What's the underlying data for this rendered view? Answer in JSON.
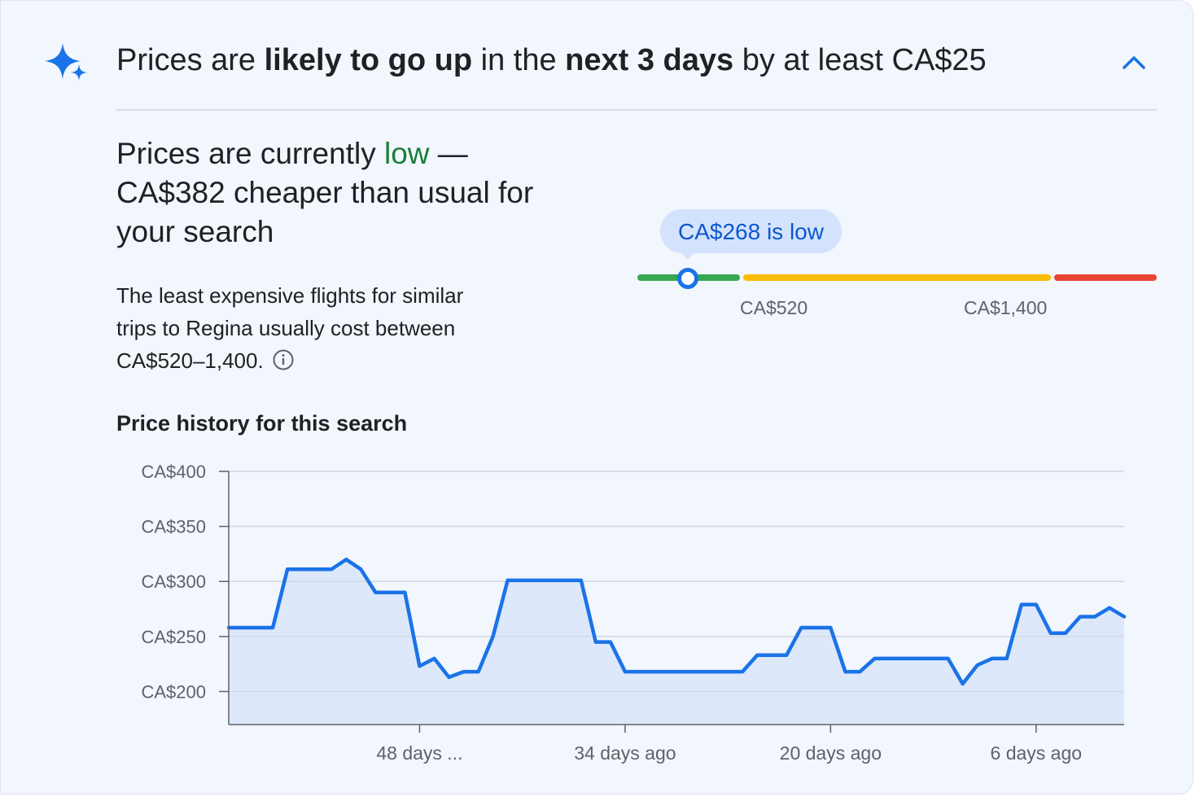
{
  "header": {
    "part1": "Prices are ",
    "bold1": "likely to go up",
    "part2": " in the ",
    "bold2": "next 3 days",
    "part3": " by at least CA$25"
  },
  "status": {
    "part1": "Prices are currently ",
    "level": "low",
    "part2": " — CA$382 cheaper than usual for your search"
  },
  "description": "The least expensive flights for similar trips to Regina usually cost between CA$520–1,400.",
  "gauge": {
    "bubble_label": "CA$268 is low",
    "label_low": "CA$520",
    "label_high": "CA$1,400",
    "colors": {
      "low": "#34a853",
      "typical": "#fbbc04",
      "high": "#ea4335"
    }
  },
  "history_title": "Price history for this search",
  "chart_data": {
    "type": "area",
    "title": "Price history for this search",
    "xlabel": "",
    "ylabel": "",
    "y_ticks": [
      "CA$200",
      "CA$250",
      "CA$300",
      "CA$350",
      "CA$400"
    ],
    "ylim": [
      170,
      400
    ],
    "x_ticks": [
      {
        "label": "48 days ...",
        "days_ago": 48
      },
      {
        "label": "34 days ago",
        "days_ago": 34
      },
      {
        "label": "20 days ago",
        "days_ago": 20
      },
      {
        "label": "6 days ago",
        "days_ago": 6
      }
    ],
    "xlim_days_ago": [
      61,
      0
    ],
    "series": [
      {
        "color": "#1a73e8",
        "fill": "#dde8fa",
        "points": [
          [
            61,
            258
          ],
          [
            58,
            258
          ],
          [
            57,
            311
          ],
          [
            55,
            311
          ],
          [
            54,
            311
          ],
          [
            53,
            320
          ],
          [
            52,
            311
          ],
          [
            51,
            290
          ],
          [
            50,
            290
          ],
          [
            49,
            290
          ],
          [
            48,
            223
          ],
          [
            47,
            230
          ],
          [
            46,
            213
          ],
          [
            45,
            218
          ],
          [
            44,
            218
          ],
          [
            43,
            250
          ],
          [
            42,
            301
          ],
          [
            41,
            301
          ],
          [
            40,
            301
          ],
          [
            39,
            301
          ],
          [
            38,
            301
          ],
          [
            37,
            301
          ],
          [
            36,
            245
          ],
          [
            35,
            245
          ],
          [
            34,
            218
          ],
          [
            33,
            218
          ],
          [
            32,
            218
          ],
          [
            31,
            218
          ],
          [
            30,
            218
          ],
          [
            29,
            218
          ],
          [
            28,
            218
          ],
          [
            27,
            218
          ],
          [
            26,
            218
          ],
          [
            25,
            233
          ],
          [
            24,
            233
          ],
          [
            23,
            233
          ],
          [
            22,
            258
          ],
          [
            21,
            258
          ],
          [
            20,
            258
          ],
          [
            19,
            218
          ],
          [
            18,
            218
          ],
          [
            17,
            230
          ],
          [
            16,
            230
          ],
          [
            15,
            230
          ],
          [
            14,
            230
          ],
          [
            13,
            230
          ],
          [
            12,
            230
          ],
          [
            11,
            207
          ],
          [
            10,
            224
          ],
          [
            9,
            230
          ],
          [
            8,
            230
          ],
          [
            7,
            279
          ],
          [
            6,
            279
          ],
          [
            5,
            253
          ],
          [
            4,
            253
          ],
          [
            3,
            268
          ],
          [
            2,
            268
          ],
          [
            1,
            276
          ],
          [
            0,
            268
          ]
        ]
      }
    ],
    "grid": true
  }
}
